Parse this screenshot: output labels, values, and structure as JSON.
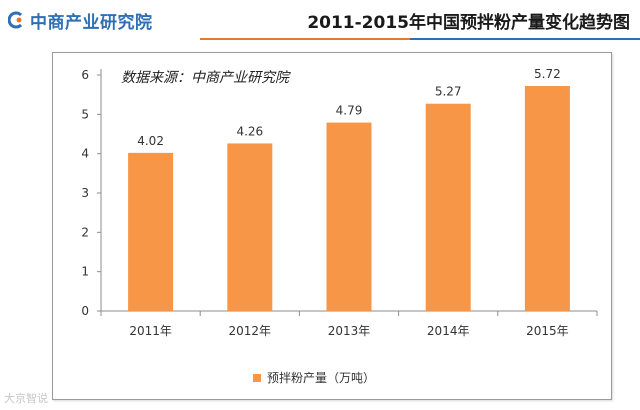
{
  "header": {
    "logo_text": "中商产业研究院",
    "page_title": "2011-2015年中国预拌粉产量变化趋势图"
  },
  "colors": {
    "bar": "#f79646",
    "brand_blue": "#2e6fb5",
    "brand_orange": "#e8772e",
    "axis": "#8c8c8c"
  },
  "chart_data": {
    "type": "bar",
    "title": "2011-2015年中国预拌粉产量变化趋势图",
    "annotation": "数据来源：中商产业研究院",
    "categories": [
      "2011年",
      "2012年",
      "2013年",
      "2014年",
      "2015年"
    ],
    "series": [
      {
        "name": "预拌粉产量（万吨）",
        "values": [
          4.02,
          4.26,
          4.79,
          5.27,
          5.72
        ],
        "labels": [
          "4.02",
          "4.26",
          "4.79",
          "5.27",
          "5.72"
        ]
      }
    ],
    "ylim": [
      0,
      6
    ],
    "yticks": [
      0,
      1,
      2,
      3,
      4,
      5,
      6
    ],
    "xlabel": "",
    "ylabel": "",
    "grid": false,
    "legend_position": "bottom"
  },
  "watermark": "大京智说"
}
